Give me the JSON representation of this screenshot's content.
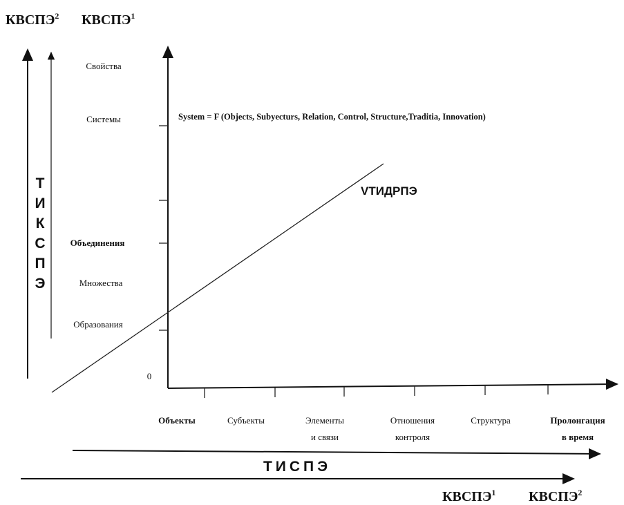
{
  "top_labels": [
    {
      "text": "КВСПЭ",
      "sup": "2"
    },
    {
      "text": "КВСПЭ",
      "sup": "1"
    }
  ],
  "vertical_label": [
    "Т",
    "И",
    "К",
    "С",
    "П",
    "Э"
  ],
  "y_labels": [
    "Свойства",
    "Системы",
    "Объединения",
    "Множества",
    "Образования",
    "0"
  ],
  "formula": "System = F (Objects, Subyecturs, Relation, Control, Structure,Traditia, Innovation)",
  "line_label": "VТИДРПЭ",
  "x_labels": [
    {
      "lines": [
        "Объекты"
      ]
    },
    {
      "lines": [
        "Субъекты"
      ]
    },
    {
      "lines": [
        "Элементы",
        "и связи"
      ]
    },
    {
      "lines": [
        "Отношения",
        "контроля"
      ]
    },
    {
      "lines": [
        "Структура"
      ]
    },
    {
      "lines": [
        "Пролонгация",
        "в время"
      ]
    }
  ],
  "bottom_label": "ТИСПЭ",
  "bottom_right_labels": [
    {
      "text": "КВСПЭ",
      "sup": "1"
    },
    {
      "text": "КВСПЭ",
      "sup": "2"
    }
  ]
}
